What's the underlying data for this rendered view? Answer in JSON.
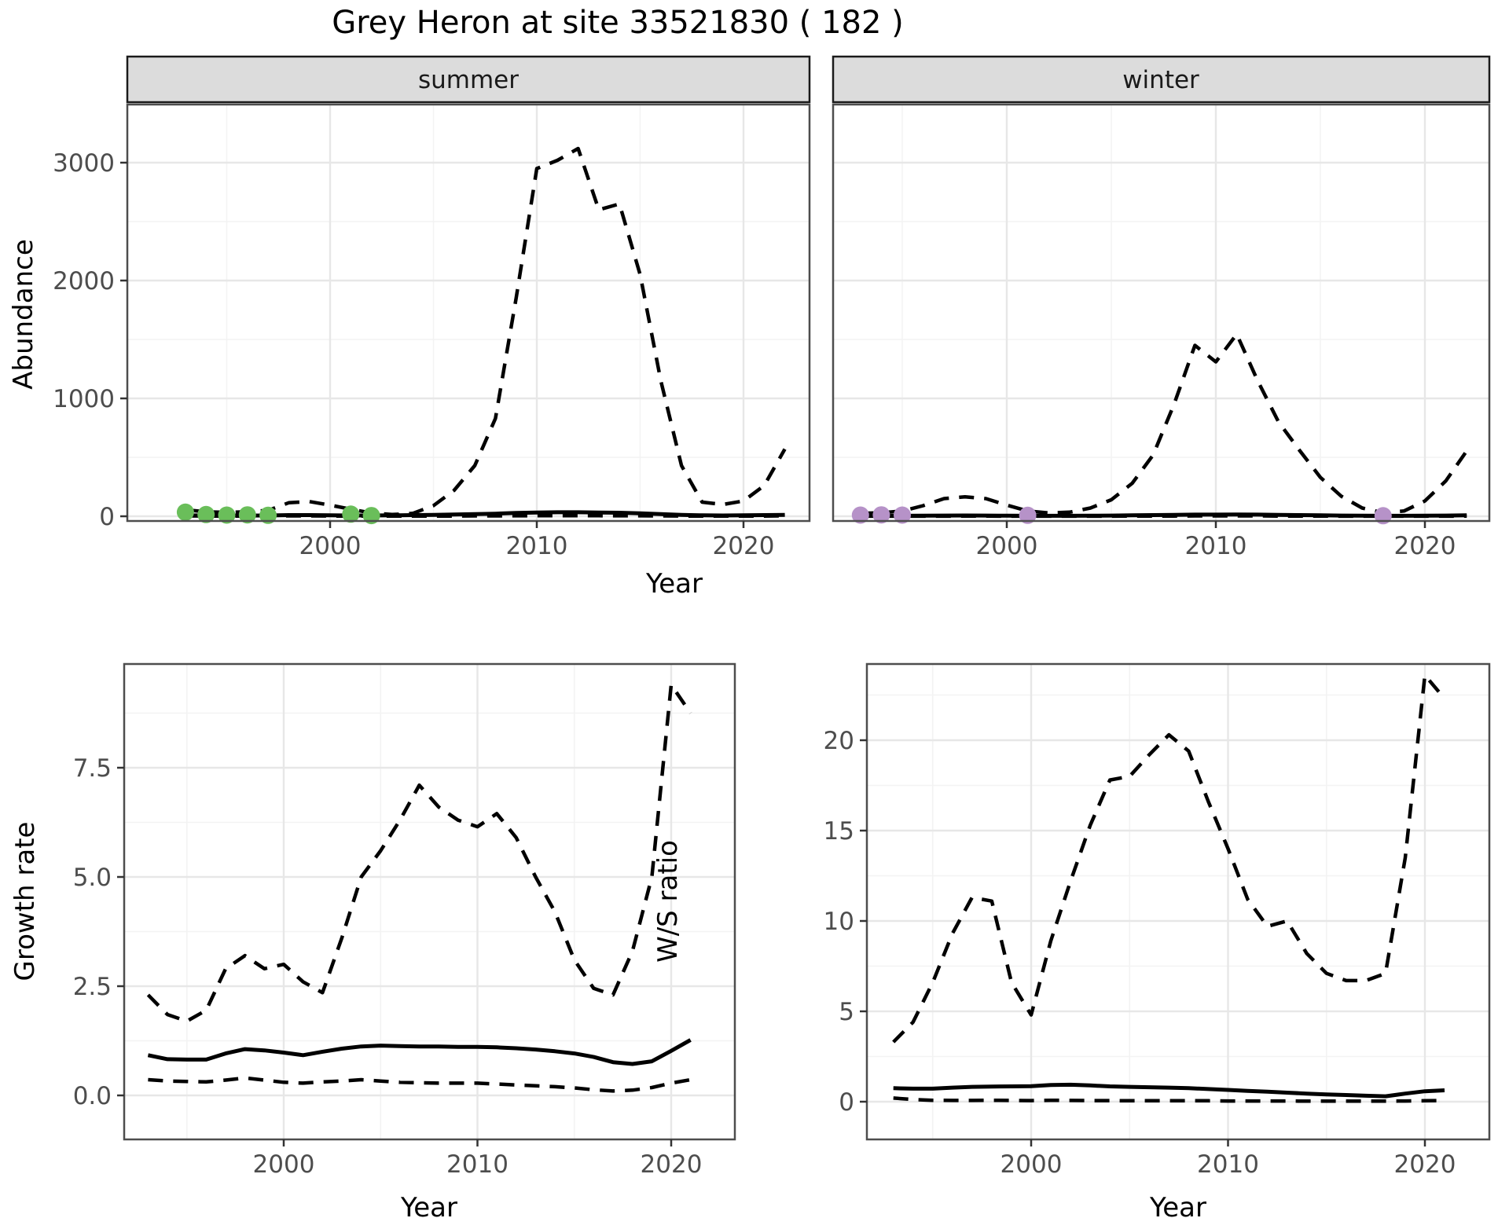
{
  "title": "Grey Heron at site 33521830 ( 182 )",
  "colors": {
    "summer_point": "#6ABE5A",
    "winter_point": "#B692C8",
    "line": "#000000",
    "grid_major": "#E7E7E7",
    "grid_minor": "#F3F3F3",
    "strip_fill": "#DCDCDC",
    "strip_border": "#1A1A1A",
    "panel_border": "#4D4D4D",
    "axis_text": "#4D4D4D",
    "tick_mark": "#333333"
  },
  "chart_data": [
    {
      "id": "abundance-summer",
      "type": "line",
      "facet_label": "summer",
      "xlabel": "Year",
      "ylabel": "Abundance",
      "xlim": [
        1990.2,
        2023.2
      ],
      "ylim": [
        0,
        3490
      ],
      "grid": true,
      "legend": "none",
      "x": [
        1993,
        1994,
        1995,
        1996,
        1997,
        1998,
        1999,
        2000,
        2001,
        2002,
        2003,
        2004,
        2005,
        2006,
        2007,
        2008,
        2009,
        2010,
        2011,
        2012,
        2013,
        2014,
        2015,
        2016,
        2017,
        2018,
        2019,
        2020,
        2021,
        2022
      ],
      "series": [
        {
          "name": "upper_ci",
          "linestyle": "dashed",
          "values": [
            55,
            38,
            33,
            38,
            50,
            115,
            125,
            95,
            60,
            28,
            15,
            25,
            90,
            220,
            430,
            830,
            1850,
            2950,
            3020,
            3120,
            2600,
            2650,
            2050,
            1150,
            430,
            120,
            100,
            130,
            260,
            570
          ]
        },
        {
          "name": "lower_ci",
          "linestyle": "dashed",
          "values": [
            3,
            2,
            2,
            2,
            2,
            3,
            3,
            2,
            2,
            2,
            2,
            2,
            2,
            2,
            3,
            3,
            4,
            5,
            5,
            5,
            5,
            4,
            4,
            3,
            2,
            2,
            2,
            2,
            2,
            3
          ]
        },
        {
          "name": "estimate",
          "linestyle": "solid",
          "values": [
            8,
            6,
            6,
            6,
            7,
            10,
            10,
            8,
            7,
            7,
            8,
            10,
            12,
            15,
            18,
            22,
            28,
            32,
            34,
            34,
            32,
            30,
            25,
            18,
            12,
            8,
            7,
            8,
            10,
            12
          ]
        }
      ],
      "points": {
        "name": "summer-observations",
        "color": "#6ABE5A",
        "x": [
          1993,
          1994,
          1995,
          1996,
          1997,
          2001,
          2002
        ],
        "y": [
          35,
          15,
          10,
          12,
          8,
          18,
          6
        ]
      },
      "x_ticks": {
        "values": [
          2000,
          2010,
          2020
        ],
        "labels": [
          "2000",
          "2010",
          "2020"
        ],
        "minor": [
          1995,
          2005,
          2015
        ]
      },
      "y_ticks": {
        "values": [
          0,
          1000,
          2000,
          3000
        ],
        "labels": [
          "0",
          "1000",
          "2000",
          "3000"
        ],
        "minor": [
          500,
          1500,
          2500
        ],
        "show_labels": true
      }
    },
    {
      "id": "abundance-winter",
      "type": "line",
      "facet_label": "winter",
      "xlabel": "Year",
      "ylabel": "Abundance",
      "xlim": [
        1991.7,
        2023.1
      ],
      "ylim": [
        0,
        3490
      ],
      "grid": true,
      "legend": "none",
      "x": [
        1993,
        1994,
        1995,
        1996,
        1997,
        1998,
        1999,
        2000,
        2001,
        2002,
        2003,
        2004,
        2005,
        2006,
        2007,
        2008,
        2009,
        2010,
        2011,
        2012,
        2013,
        2014,
        2015,
        2016,
        2017,
        2018,
        2019,
        2020,
        2021,
        2022
      ],
      "series": [
        {
          "name": "upper_ci",
          "linestyle": "dashed",
          "values": [
            25,
            30,
            45,
            90,
            150,
            165,
            150,
            95,
            45,
            28,
            35,
            70,
            140,
            280,
            520,
            950,
            1450,
            1310,
            1545,
            1150,
            800,
            560,
            330,
            170,
            70,
            30,
            45,
            130,
            300,
            555
          ]
        },
        {
          "name": "lower_ci",
          "linestyle": "dashed",
          "values": [
            1,
            1,
            1,
            1,
            1,
            2,
            2,
            1,
            1,
            1,
            1,
            1,
            1,
            2,
            2,
            2,
            3,
            3,
            3,
            3,
            2,
            2,
            2,
            1,
            1,
            1,
            1,
            1,
            1,
            2
          ]
        },
        {
          "name": "estimate",
          "linestyle": "solid",
          "values": [
            4,
            4,
            4,
            5,
            6,
            7,
            6,
            5,
            4,
            4,
            4,
            5,
            6,
            8,
            10,
            12,
            14,
            14,
            15,
            14,
            12,
            10,
            8,
            6,
            5,
            4,
            4,
            5,
            6,
            8
          ]
        }
      ],
      "points": {
        "name": "winter-observations",
        "color": "#B692C8",
        "x": [
          1993,
          1994,
          1995,
          2001,
          2018
        ],
        "y": [
          10,
          12,
          10,
          8,
          5
        ]
      },
      "x_ticks": {
        "values": [
          2000,
          2010,
          2020
        ],
        "labels": [
          "2000",
          "2010",
          "2020"
        ],
        "minor": [
          1995,
          2005,
          2015
        ]
      },
      "y_ticks": {
        "values": [
          0,
          1000,
          2000,
          3000
        ],
        "labels": [
          "0",
          "1000",
          "2000",
          "3000"
        ],
        "minor": [
          500,
          1500,
          2500
        ],
        "show_labels": false
      }
    },
    {
      "id": "growth-rate",
      "type": "line",
      "facet_label": "",
      "xlabel": "Year",
      "ylabel": "Growth rate",
      "xlim": [
        1991.8,
        2023.3
      ],
      "ylim": [
        0,
        9.8
      ],
      "grid": true,
      "legend": "none",
      "x": [
        1993,
        1994,
        1995,
        1996,
        1997,
        1998,
        1999,
        2000,
        2001,
        2002,
        2003,
        2004,
        2005,
        2006,
        2007,
        2008,
        2009,
        2010,
        2011,
        2012,
        2013,
        2014,
        2015,
        2016,
        2017,
        2018,
        2019,
        2020,
        2021
      ],
      "series": [
        {
          "name": "upper_ci",
          "linestyle": "dashed",
          "values": [
            2.3,
            1.85,
            1.7,
            1.95,
            2.9,
            3.2,
            2.9,
            3.0,
            2.6,
            2.35,
            3.6,
            5.0,
            5.6,
            6.3,
            7.1,
            6.6,
            6.3,
            6.15,
            6.45,
            5.9,
            5.0,
            4.2,
            3.1,
            2.45,
            2.3,
            3.3,
            5.0,
            9.4,
            8.75
          ]
        },
        {
          "name": "lower_ci",
          "linestyle": "dashed",
          "values": [
            0.36,
            0.33,
            0.32,
            0.31,
            0.35,
            0.4,
            0.35,
            0.3,
            0.28,
            0.31,
            0.33,
            0.36,
            0.33,
            0.3,
            0.29,
            0.28,
            0.28,
            0.28,
            0.26,
            0.24,
            0.22,
            0.2,
            0.17,
            0.13,
            0.1,
            0.12,
            0.18,
            0.28,
            0.36
          ]
        },
        {
          "name": "estimate",
          "linestyle": "solid",
          "values": [
            0.92,
            0.83,
            0.82,
            0.82,
            0.96,
            1.06,
            1.03,
            0.98,
            0.92,
            1.0,
            1.07,
            1.12,
            1.14,
            1.13,
            1.12,
            1.12,
            1.11,
            1.11,
            1.1,
            1.08,
            1.05,
            1.01,
            0.96,
            0.88,
            0.76,
            0.72,
            0.78,
            1.02,
            1.27
          ]
        }
      ],
      "x_ticks": {
        "values": [
          2000,
          2010,
          2020
        ],
        "labels": [
          "2000",
          "2010",
          "2020"
        ],
        "minor": [
          1995,
          2005,
          2015
        ]
      },
      "y_ticks": {
        "values": [
          0,
          2.5,
          5,
          7.5
        ],
        "labels": [
          "0.0",
          "2.5",
          "5.0",
          "7.5"
        ],
        "minor": [
          1.25,
          3.75,
          6.25,
          8.75
        ],
        "show_labels": true
      }
    },
    {
      "id": "ws-ratio",
      "type": "line",
      "facet_label": "",
      "xlabel": "Year",
      "ylabel": "W/S ratio",
      "xlim": [
        1991.6,
        2023.2
      ],
      "ylim": [
        0,
        24.2
      ],
      "grid": true,
      "legend": "none",
      "x": [
        1993,
        1994,
        1995,
        1996,
        1997,
        1998,
        1999,
        2000,
        2001,
        2002,
        2003,
        2004,
        2005,
        2006,
        2007,
        2008,
        2009,
        2010,
        2011,
        2012,
        2013,
        2014,
        2015,
        2016,
        2017,
        2018,
        2019,
        2020,
        2021
      ],
      "series": [
        {
          "name": "upper_ci",
          "linestyle": "dashed",
          "values": [
            3.3,
            4.4,
            6.6,
            9.3,
            11.3,
            11.1,
            6.6,
            4.8,
            8.9,
            12.2,
            15.3,
            17.8,
            18.0,
            19.2,
            20.3,
            19.4,
            16.6,
            14.0,
            11.2,
            9.7,
            10.0,
            8.2,
            7.1,
            6.7,
            6.7,
            7.1,
            13.5,
            23.6,
            22.3
          ]
        },
        {
          "name": "lower_ci",
          "linestyle": "dashed",
          "values": [
            0.2,
            0.12,
            0.08,
            0.07,
            0.07,
            0.08,
            0.07,
            0.06,
            0.08,
            0.07,
            0.06,
            0.06,
            0.05,
            0.05,
            0.05,
            0.05,
            0.05,
            0.04,
            0.04,
            0.04,
            0.04,
            0.03,
            0.03,
            0.03,
            0.03,
            0.03,
            0.04,
            0.05,
            0.06
          ]
        },
        {
          "name": "estimate",
          "linestyle": "solid",
          "values": [
            0.75,
            0.72,
            0.72,
            0.78,
            0.82,
            0.84,
            0.85,
            0.86,
            0.92,
            0.94,
            0.9,
            0.85,
            0.82,
            0.8,
            0.78,
            0.75,
            0.7,
            0.65,
            0.6,
            0.55,
            0.5,
            0.45,
            0.4,
            0.37,
            0.33,
            0.3,
            0.45,
            0.58,
            0.63
          ]
        }
      ],
      "x_ticks": {
        "values": [
          2000,
          2010,
          2020
        ],
        "labels": [
          "2000",
          "2010",
          "2020"
        ],
        "minor": [
          1995,
          2005,
          2015
        ]
      },
      "y_ticks": {
        "values": [
          0,
          5,
          10,
          15,
          20
        ],
        "labels": [
          "0",
          "5",
          "10",
          "15",
          "20"
        ],
        "minor": [
          2.5,
          7.5,
          12.5,
          17.5,
          22.5
        ],
        "show_labels": true
      }
    }
  ]
}
